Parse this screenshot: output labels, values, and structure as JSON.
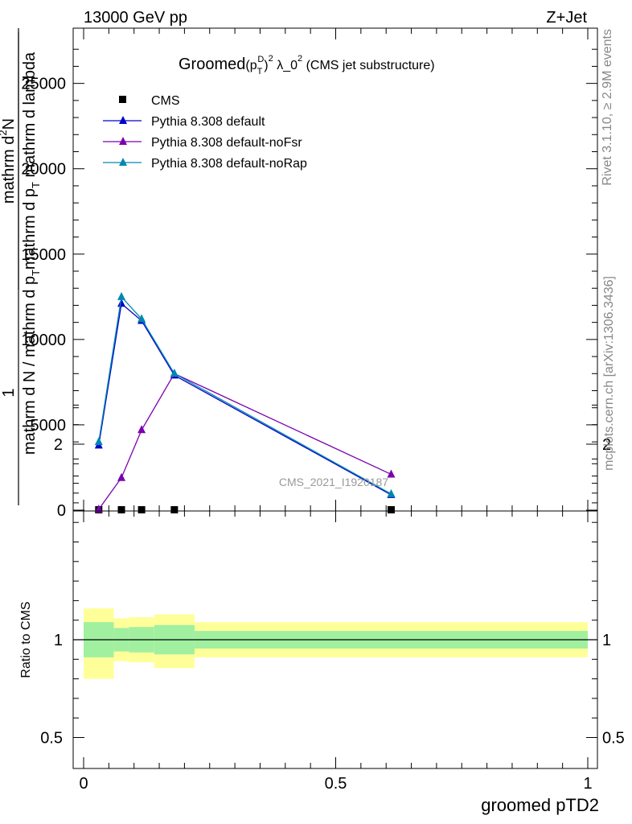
{
  "header": {
    "energy_label": "13000 GeV pp",
    "process_label": "Z+Jet"
  },
  "side_text": {
    "rivet": "Rivet 3.1.10, ≥ 2.9M events",
    "mcplots": "mcplots.cern.ch [arXiv:1306.3436]"
  },
  "watermark": "CMS_2021_I1920187",
  "chart_data": [
    {
      "type": "line",
      "title": "Groomed (p_T^D)^2 λ_0^2 (CMS jet substructure)",
      "title_parts": {
        "pre": "Groomed",
        "p": "p",
        "sup_d": "D",
        "sub_t": "T",
        "sq": "2",
        "lambda": " λ_0",
        "post": " (CMS jet substructure)"
      },
      "ylabel_parts": {
        "one": "1",
        "denominator": "mathrm d N / mathrm d p",
        "denominator_sub": "T",
        "numerator_top": "mathrm d",
        "numerator_top_sup": "2",
        "numerator_top_tail": "N",
        "numerator_bottom": "mathrm d p",
        "numerator_bottom_sub": "T",
        "numerator_bottom_tail": " mathrm d lambda"
      },
      "xlim": [
        0,
        1
      ],
      "ylim": [
        0,
        28000
      ],
      "yticks": [
        0,
        5000,
        10000,
        15000,
        20000,
        25000
      ],
      "ytick_labels": [
        "0",
        "5000",
        "10000",
        "15000",
        "20000",
        "25000"
      ],
      "grid": false,
      "legend_position": "top-left",
      "series": [
        {
          "name": "CMS",
          "marker": "square",
          "color": "#000000",
          "x": [
            0.03,
            0.075,
            0.115,
            0.18,
            0.61
          ],
          "y": [
            0,
            0,
            0,
            0,
            0
          ]
        },
        {
          "name": "Pythia 8.308 default",
          "marker": "triangle",
          "color": "#0000cc",
          "x": [
            0.03,
            0.075,
            0.115,
            0.18,
            0.61
          ],
          "y": [
            3800,
            12100,
            11100,
            7900,
            900
          ]
        },
        {
          "name": "Pythia 8.308 default-noFsr",
          "marker": "triangle",
          "color": "#7a00b0",
          "x": [
            0.03,
            0.075,
            0.115,
            0.18,
            0.61
          ],
          "y": [
            50,
            1900,
            4700,
            8000,
            2100
          ]
        },
        {
          "name": "Pythia 8.308 default-noRap",
          "marker": "triangle",
          "color": "#0088b0",
          "x": [
            0.03,
            0.075,
            0.115,
            0.18,
            0.61
          ],
          "y": [
            4000,
            12500,
            11200,
            8000,
            950
          ]
        }
      ]
    },
    {
      "type": "area",
      "ylabel": "Ratio to CMS",
      "xlabel": "groomed pTD2",
      "xlim": [
        0,
        1
      ],
      "ylim": [
        0.35,
        2.35
      ],
      "xticks": [
        0,
        0.5,
        1
      ],
      "xtick_labels": [
        "0",
        "0.5",
        "1"
      ],
      "yticks": [
        0.5,
        1,
        2
      ],
      "ytick_labels": [
        "0.5",
        "1",
        "2"
      ],
      "bins": [
        {
          "lo": 0.0,
          "hi": 0.06,
          "stat": [
            0.91,
            1.09
          ],
          "total": [
            0.8,
            1.16
          ]
        },
        {
          "lo": 0.06,
          "hi": 0.09,
          "stat": [
            0.94,
            1.06
          ],
          "total": [
            0.89,
            1.11
          ]
        },
        {
          "lo": 0.09,
          "hi": 0.14,
          "stat": [
            0.935,
            1.065
          ],
          "total": [
            0.885,
            1.115
          ]
        },
        {
          "lo": 0.14,
          "hi": 0.22,
          "stat": [
            0.925,
            1.075
          ],
          "total": [
            0.855,
            1.13
          ]
        },
        {
          "lo": 0.22,
          "hi": 1.0,
          "stat": [
            0.955,
            1.045
          ],
          "total": [
            0.91,
            1.09
          ]
        }
      ],
      "colors": {
        "stat": "#a0f0a0",
        "total": "#ffff99",
        "reference": "#000000"
      }
    }
  ]
}
